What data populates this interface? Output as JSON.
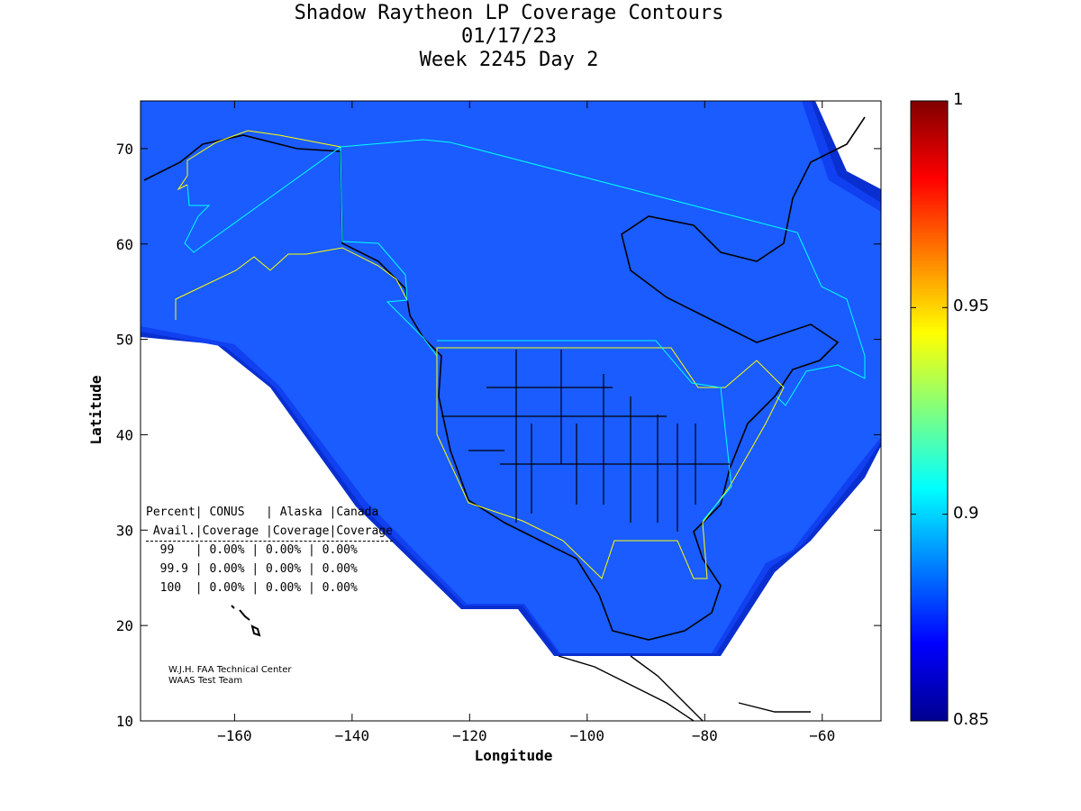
{
  "title": {
    "line1": "Shadow Raytheon LP Coverage Contours",
    "line2": "01/17/23",
    "line3": "Week 2245 Day 2"
  },
  "chart_data": {
    "type": "heatmap",
    "xlabel": "Longitude",
    "ylabel": "Latitude",
    "xlim": [
      -176,
      -50
    ],
    "ylim": [
      10,
      75
    ],
    "xticks": [
      -160,
      -140,
      -120,
      -100,
      -80,
      -60
    ],
    "yticks": [
      10,
      20,
      30,
      40,
      50,
      60,
      70
    ],
    "colorbar": {
      "range": [
        0.85,
        1
      ],
      "ticks": [
        "0.85",
        "0.9",
        "0.95",
        "1"
      ],
      "colormap": "jet"
    },
    "dominant_value_color": "#1a5cff"
  },
  "table": {
    "header1": "Percent| CONUS   | Alaska |Canada",
    "header2": " Avail.|Coverage |Coverage|Coverage",
    "rows": [
      "  99   | 0.00% | 0.00% | 0.00%",
      "  99.9 | 0.00% | 0.00% | 0.00%",
      "  100  | 0.00% | 0.00% | 0.00%"
    ]
  },
  "credit": {
    "line1": "W.J.H. FAA Technical Center",
    "line2": "WAAS Test Team"
  },
  "colors": {
    "coverage": "#1a5cff",
    "edge1": "#1040f0",
    "edge2": "#0a2fd0",
    "cyan_boundary": "#00ffff",
    "yellow_boundary": "#ffff00"
  }
}
